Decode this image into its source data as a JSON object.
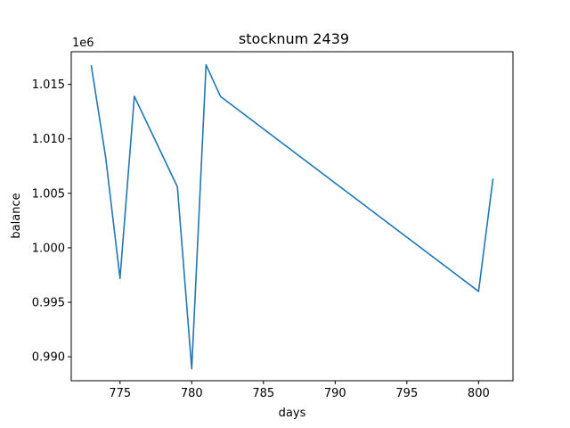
{
  "colors": {
    "line": "#1f77b4",
    "axes": "#000000",
    "background": "#ffffff"
  },
  "chart_data": {
    "type": "line",
    "title": "stocknum 2439",
    "xlabel": "days",
    "ylabel": "balance",
    "y_offset_text": "1e6",
    "grid": false,
    "xlim": [
      771.6,
      802.4
    ],
    "ylim": [
      987.8,
      1018.0
    ],
    "x_ticks": [
      775,
      780,
      785,
      790,
      795,
      800
    ],
    "x_tick_labels": [
      "775",
      "780",
      "785",
      "790",
      "795",
      "800"
    ],
    "y_ticks": [
      990,
      995,
      1000,
      1005,
      1010,
      1015
    ],
    "y_tick_labels": [
      "0.990",
      "0.995",
      "1.000",
      "1.005",
      "1.010",
      "1.015"
    ],
    "series": [
      {
        "x": [
          773,
          774,
          775,
          776,
          779,
          780,
          781,
          782,
          800,
          801
        ],
        "y": [
          1016.7,
          1008.3,
          997.2,
          1013.9,
          1005.6,
          988.9,
          1016.8,
          1013.9,
          996.0,
          1006.3
        ]
      }
    ]
  }
}
